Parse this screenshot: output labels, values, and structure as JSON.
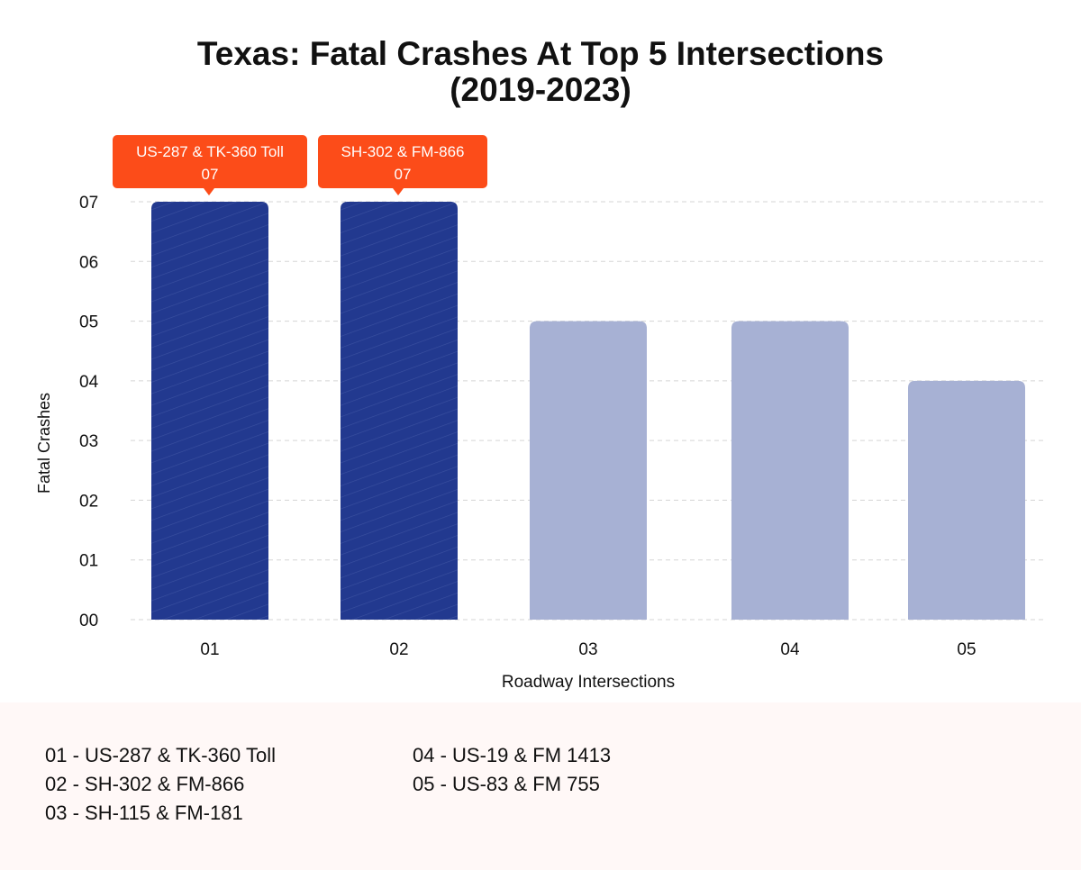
{
  "chart_data": {
    "type": "bar",
    "title": "Texas: Fatal Crashes At Top 5 Intersections",
    "subtitle": "(2019-2023)",
    "xlabel": "Roadway Intersections",
    "ylabel": "Fatal Crashes",
    "categories": [
      "01",
      "02",
      "03",
      "04",
      "05"
    ],
    "values": [
      7,
      7,
      5,
      5,
      4
    ],
    "ylim": [
      0,
      7
    ],
    "yticks": [
      "00",
      "01",
      "02",
      "03",
      "04",
      "05",
      "06",
      "07"
    ],
    "grid": true,
    "highlighted": [
      {
        "index": 0,
        "label": "US-287 & TK-360 Toll",
        "value_label": "07"
      },
      {
        "index": 1,
        "label": "SH-302 & FM-866",
        "value_label": "07"
      }
    ],
    "colors": {
      "highlight": "#22398f",
      "normal": "#a7b1d4",
      "callout": "#fc4c19"
    }
  },
  "legend": {
    "items": [
      "01 - US-287 & TK-360 Toll",
      "02 - SH-302 & FM-866",
      "03 - SH-115 & FM-181",
      "04 - US-19 & FM 1413",
      "05 - US-83 & FM 755"
    ]
  }
}
